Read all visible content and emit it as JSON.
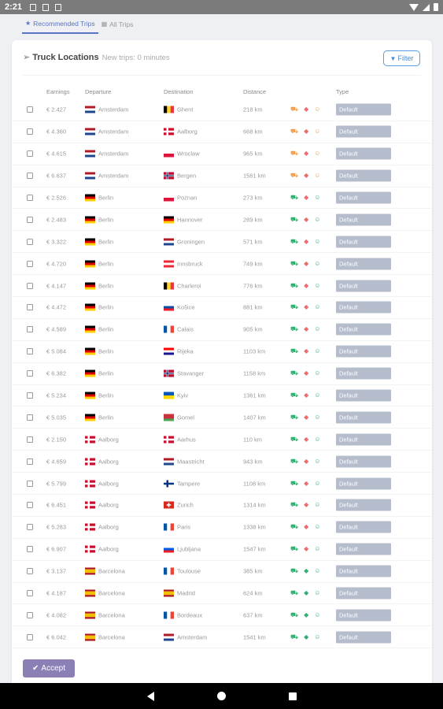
{
  "status": {
    "time": "2:21"
  },
  "tabs": [
    {
      "label": "Recommended Trips",
      "icon": "star-icon",
      "active": true
    },
    {
      "label": "All Trips",
      "icon": "grid-icon",
      "active": false
    }
  ],
  "header": {
    "title": "Truck Locations",
    "subtitle": "New trips: 0 minutes",
    "filter_label": "Filter"
  },
  "table": {
    "columns": {
      "earnings": "Earnings",
      "departure": "Departure",
      "destination": "Destination",
      "distance": "Distance",
      "type": "Type"
    },
    "colors": {
      "orange": "#f0a050",
      "red": "#ee6b6b",
      "green": "#30b070"
    },
    "flag_colors": {
      "NL": [
        "#ae1c28",
        "#ffffff",
        "#21468b"
      ],
      "DE": [
        "#000000",
        "#dd0000",
        "#ffce00"
      ],
      "DK": [
        "#c8102e",
        "#ffffff"
      ],
      "ES": [
        "#aa151b",
        "#f1bf00",
        "#aa151b"
      ],
      "BE": [
        "#000000",
        "#fdda24",
        "#ef3340"
      ],
      "PL": [
        "#ffffff",
        "#dc143c"
      ],
      "NO": [
        "#ba0c2f",
        "#ffffff",
        "#00205b"
      ],
      "AT": [
        "#ed2939",
        "#ffffff",
        "#ed2939"
      ],
      "SK": [
        "#ffffff",
        "#0b4ea2",
        "#ee1c25"
      ],
      "FR": [
        "#0055a4",
        "#ffffff",
        "#ef4135"
      ],
      "HR": [
        "#ff0000",
        "#ffffff",
        "#171796"
      ],
      "UA": [
        "#0057b7",
        "#ffd700"
      ],
      "BY": [
        "#c8313e",
        "#4aa657"
      ],
      "FI": [
        "#ffffff",
        "#003580"
      ],
      "CH": [
        "#d52b1e",
        "#ffffff"
      ],
      "SI": [
        "#ffffff",
        "#005ce5",
        "#ed1c24"
      ]
    },
    "rows": [
      {
        "earnings": "€ 2.427",
        "dep": "Amsterdam",
        "dep_flag": "NL",
        "dest": "Ghent",
        "dest_flag": "BE",
        "distance": "218 km",
        "icons": [
          "orange",
          "red",
          "orange"
        ],
        "type": "Default"
      },
      {
        "earnings": "€ 4.360",
        "dep": "Amsterdam",
        "dep_flag": "NL",
        "dest": "Aalborg",
        "dest_flag": "DK",
        "distance": "668 km",
        "icons": [
          "orange",
          "red",
          "orange"
        ],
        "type": "Default"
      },
      {
        "earnings": "€ 4.615",
        "dep": "Amsterdam",
        "dep_flag": "NL",
        "dest": "Wroclaw",
        "dest_flag": "PL",
        "distance": "965 km",
        "icons": [
          "orange",
          "red",
          "orange"
        ],
        "type": "Default"
      },
      {
        "earnings": "€ 6.637",
        "dep": "Amsterdam",
        "dep_flag": "NL",
        "dest": "Bergen",
        "dest_flag": "NO",
        "distance": "1561 km",
        "icons": [
          "orange",
          "red",
          "orange"
        ],
        "type": "Default"
      },
      {
        "earnings": "€ 2.526",
        "dep": "Berlin",
        "dep_flag": "DE",
        "dest": "Poznan",
        "dest_flag": "PL",
        "distance": "273 km",
        "icons": [
          "green",
          "red",
          "green"
        ],
        "type": "Default"
      },
      {
        "earnings": "€ 2.483",
        "dep": "Berlin",
        "dep_flag": "DE",
        "dest": "Hannover",
        "dest_flag": "DE",
        "distance": "289 km",
        "icons": [
          "green",
          "red",
          "green"
        ],
        "type": "Default"
      },
      {
        "earnings": "€ 3.322",
        "dep": "Berlin",
        "dep_flag": "DE",
        "dest": "Groningen",
        "dest_flag": "NL",
        "distance": "571 km",
        "icons": [
          "green",
          "red",
          "green"
        ],
        "type": "Default"
      },
      {
        "earnings": "€ 4.720",
        "dep": "Berlin",
        "dep_flag": "DE",
        "dest": "Innsbruck",
        "dest_flag": "AT",
        "distance": "749 km",
        "icons": [
          "green",
          "red",
          "green"
        ],
        "type": "Default"
      },
      {
        "earnings": "€ 4.147",
        "dep": "Berlin",
        "dep_flag": "DE",
        "dest": "Charleroi",
        "dest_flag": "BE",
        "distance": "776 km",
        "icons": [
          "green",
          "red",
          "green"
        ],
        "type": "Default"
      },
      {
        "earnings": "€ 4.472",
        "dep": "Berlin",
        "dep_flag": "DE",
        "dest": "Košice",
        "dest_flag": "SK",
        "distance": "881 km",
        "icons": [
          "green",
          "red",
          "green"
        ],
        "type": "Default"
      },
      {
        "earnings": "€ 4.589",
        "dep": "Berlin",
        "dep_flag": "DE",
        "dest": "Calais",
        "dest_flag": "FR",
        "distance": "905 km",
        "icons": [
          "green",
          "red",
          "green"
        ],
        "type": "Default"
      },
      {
        "earnings": "€ 5.084",
        "dep": "Berlin",
        "dep_flag": "DE",
        "dest": "Rijeka",
        "dest_flag": "HR",
        "distance": "1103 km",
        "icons": [
          "green",
          "red",
          "green"
        ],
        "type": "Default"
      },
      {
        "earnings": "€ 6.382",
        "dep": "Berlin",
        "dep_flag": "DE",
        "dest": "Stavanger",
        "dest_flag": "NO",
        "distance": "1158 km",
        "icons": [
          "green",
          "red",
          "green"
        ],
        "type": "Default"
      },
      {
        "earnings": "€ 5.234",
        "dep": "Berlin",
        "dep_flag": "DE",
        "dest": "Kyiv",
        "dest_flag": "UA",
        "distance": "1361 km",
        "icons": [
          "green",
          "red",
          "green"
        ],
        "type": "Default"
      },
      {
        "earnings": "€ 5.035",
        "dep": "Berlin",
        "dep_flag": "DE",
        "dest": "Gomel",
        "dest_flag": "BY",
        "distance": "1407 km",
        "icons": [
          "green",
          "red",
          "green"
        ],
        "type": "Default"
      },
      {
        "earnings": "€ 2.150",
        "dep": "Aalborg",
        "dep_flag": "DK",
        "dest": "Aarhus",
        "dest_flag": "DK",
        "distance": "110 km",
        "icons": [
          "green",
          "red",
          "green"
        ],
        "type": "Default"
      },
      {
        "earnings": "€ 4.659",
        "dep": "Aalborg",
        "dep_flag": "DK",
        "dest": "Maastricht",
        "dest_flag": "NL",
        "distance": "943 km",
        "icons": [
          "green",
          "red",
          "green"
        ],
        "type": "Default"
      },
      {
        "earnings": "€ 5.799",
        "dep": "Aalborg",
        "dep_flag": "DK",
        "dest": "Tampere",
        "dest_flag": "FI",
        "distance": "1108 km",
        "icons": [
          "green",
          "red",
          "green"
        ],
        "type": "Default"
      },
      {
        "earnings": "€ 6.451",
        "dep": "Aalborg",
        "dep_flag": "DK",
        "dest": "Zurich",
        "dest_flag": "CH",
        "distance": "1314 km",
        "icons": [
          "green",
          "red",
          "green"
        ],
        "type": "Default"
      },
      {
        "earnings": "€ 5.283",
        "dep": "Aalborg",
        "dep_flag": "DK",
        "dest": "Paris",
        "dest_flag": "FR",
        "distance": "1338 km",
        "icons": [
          "green",
          "red",
          "green"
        ],
        "type": "Default"
      },
      {
        "earnings": "€ 6.907",
        "dep": "Aalborg",
        "dep_flag": "DK",
        "dest": "Ljubljana",
        "dest_flag": "SI",
        "distance": "1547 km",
        "icons": [
          "green",
          "red",
          "green"
        ],
        "type": "Default"
      },
      {
        "earnings": "€ 3.137",
        "dep": "Barcelona",
        "dep_flag": "ES",
        "dest": "Toulouse",
        "dest_flag": "FR",
        "distance": "385 km",
        "icons": [
          "green",
          "green",
          "green"
        ],
        "type": "Default"
      },
      {
        "earnings": "€ 4.187",
        "dep": "Barcelona",
        "dep_flag": "ES",
        "dest": "Madrid",
        "dest_flag": "ES",
        "distance": "624 km",
        "icons": [
          "green",
          "green",
          "green"
        ],
        "type": "Default"
      },
      {
        "earnings": "€ 4.082",
        "dep": "Barcelona",
        "dep_flag": "ES",
        "dest": "Bordeaux",
        "dest_flag": "FR",
        "distance": "637 km",
        "icons": [
          "green",
          "green",
          "green"
        ],
        "type": "Default"
      },
      {
        "earnings": "€ 6.042",
        "dep": "Barcelona",
        "dep_flag": "ES",
        "dest": "Amsterdam",
        "dest_flag": "NL",
        "distance": "1541 km",
        "icons": [
          "green",
          "green",
          "green"
        ],
        "type": "Default"
      }
    ]
  },
  "footer": {
    "accept_label": "Accept"
  }
}
